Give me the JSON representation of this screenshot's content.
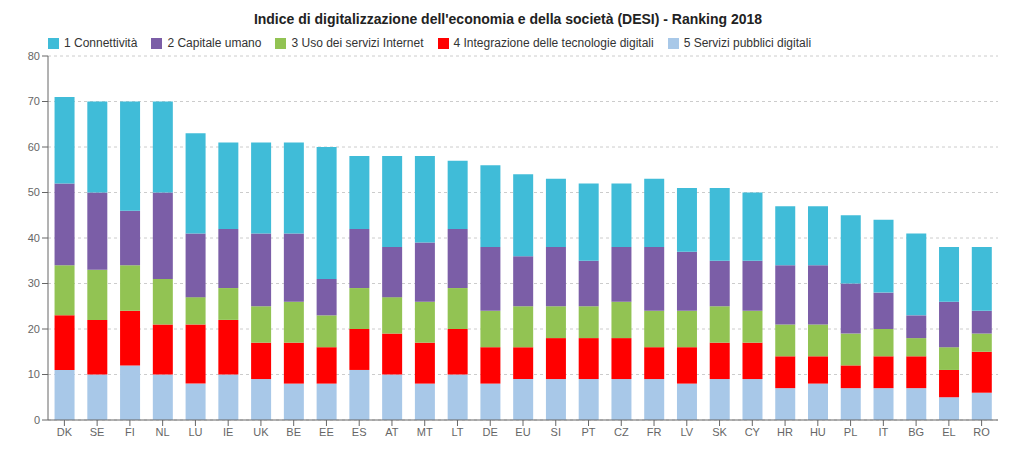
{
  "chart_data": {
    "type": "bar",
    "title": "Indice di digitalizzazione dell'economia e della società (DESI) - Ranking 2018",
    "stacked": true,
    "grid": true,
    "legend": "upper left",
    "categories": [
      "DK",
      "SE",
      "FI",
      "NL",
      "LU",
      "IE",
      "UK",
      "BE",
      "EE",
      "ES",
      "AT",
      "MT",
      "LT",
      "DE",
      "EU",
      "SI",
      "PT",
      "CZ",
      "FR",
      "LV",
      "SK",
      "CY",
      "HR",
      "HU",
      "PL",
      "IT",
      "BG",
      "EL",
      "RO"
    ],
    "series": [
      {
        "name": "5 Servizi pubblici digitali",
        "color": "#a8c8e8",
        "values": [
          11,
          10,
          12,
          10,
          8,
          10,
          9,
          8,
          8,
          11,
          10,
          8,
          10,
          8,
          9,
          9,
          9,
          9,
          9,
          8,
          9,
          9,
          7,
          8,
          7,
          7,
          7,
          5,
          6
        ]
      },
      {
        "name": "4 Integrazione delle tecnologie digitali",
        "color": "#ff0000",
        "values": [
          12,
          12,
          12,
          11,
          13,
          12,
          8,
          9,
          8,
          9,
          9,
          9,
          10,
          8,
          7,
          9,
          9,
          9,
          7,
          8,
          8,
          8,
          7,
          6,
          5,
          7,
          7,
          6,
          9
        ]
      },
      {
        "name": "3 Uso dei servizi Internet",
        "color": "#92c353",
        "values": [
          11,
          11,
          10,
          10,
          6,
          7,
          8,
          9,
          7,
          9,
          8,
          9,
          9,
          8,
          9,
          7,
          7,
          8,
          8,
          8,
          8,
          7,
          7,
          7,
          7,
          6,
          4,
          5,
          4
        ]
      },
      {
        "name": "2 Capitale umano",
        "color": "#7b5ea7",
        "values": [
          18,
          17,
          12,
          19,
          14,
          13,
          16,
          15,
          8,
          13,
          11,
          13,
          13,
          14,
          11,
          13,
          10,
          12,
          14,
          13,
          10,
          11,
          13,
          13,
          11,
          8,
          5,
          10,
          5
        ]
      },
      {
        "name": "1 Connettività",
        "color": "#40bcd8",
        "values": [
          19,
          20,
          24,
          20,
          22,
          19,
          20,
          20,
          29,
          16,
          20,
          19,
          15,
          18,
          18,
          15,
          17,
          14,
          15,
          14,
          16,
          15,
          13,
          13,
          15,
          16,
          18,
          12,
          14
        ]
      }
    ],
    "ylim": [
      0,
      80
    ],
    "yticks": [
      0,
      10,
      20,
      30,
      40,
      50,
      60,
      70,
      80
    ]
  }
}
